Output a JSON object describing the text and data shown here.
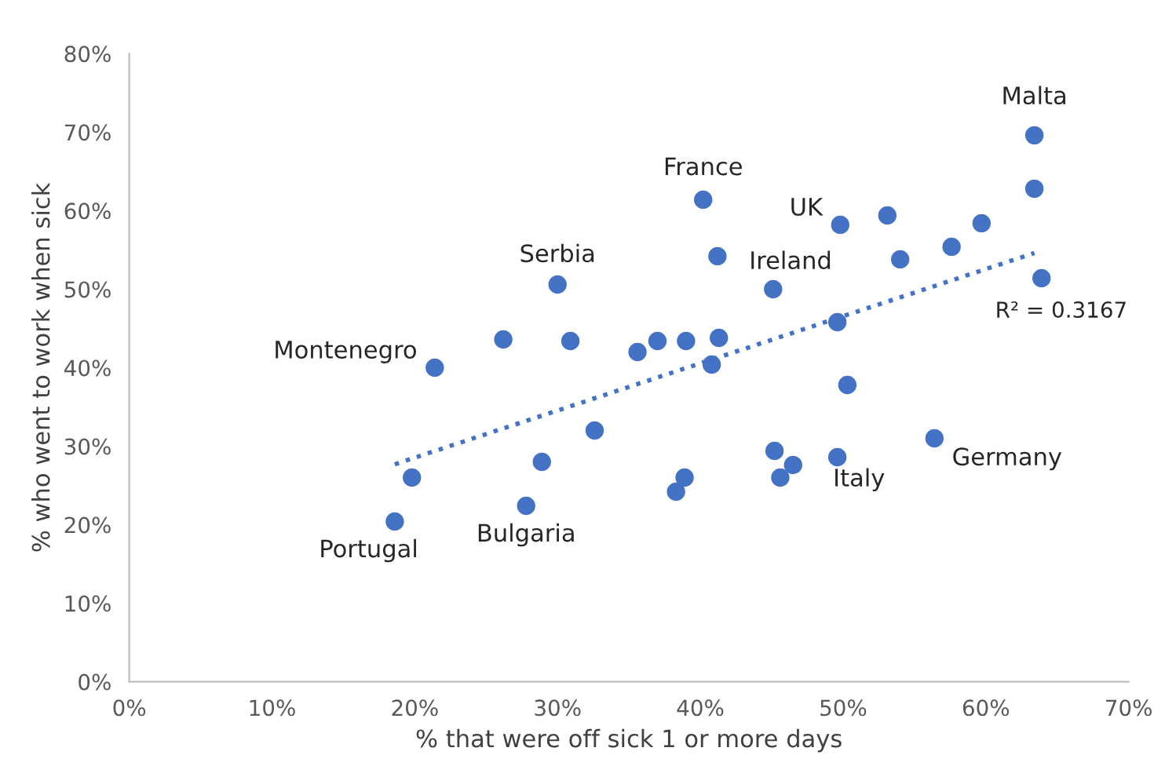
{
  "chart_data": {
    "type": "scatter",
    "xlabel": "% that were off sick 1 or more days",
    "ylabel": "% who went to work when sick",
    "xlim": [
      0,
      70
    ],
    "ylim": [
      0,
      80
    ],
    "xticks": [
      {
        "value": 0,
        "label": "0%"
      },
      {
        "value": 10,
        "label": "10%"
      },
      {
        "value": 20,
        "label": "20%"
      },
      {
        "value": 30,
        "label": "30%"
      },
      {
        "value": 40,
        "label": "40%"
      },
      {
        "value": 50,
        "label": "50%"
      },
      {
        "value": 60,
        "label": "60%"
      },
      {
        "value": 70,
        "label": "70%"
      }
    ],
    "yticks": [
      {
        "value": 0,
        "label": "0%"
      },
      {
        "value": 10,
        "label": "10%"
      },
      {
        "value": 20,
        "label": "20%"
      },
      {
        "value": 30,
        "label": "30%"
      },
      {
        "value": 40,
        "label": "40%"
      },
      {
        "value": 50,
        "label": "50%"
      },
      {
        "value": 60,
        "label": "60%"
      },
      {
        "value": 70,
        "label": "70%"
      },
      {
        "value": 80,
        "label": "80%"
      }
    ],
    "grid": false,
    "series": [
      {
        "color": "#4472c4",
        "marker": "circle",
        "x": [
          63.4,
          63.4,
          63.9,
          40.2,
          41.2,
          49.8,
          53.1,
          54.0,
          57.6,
          59.7,
          45.1,
          49.6,
          50.3,
          30.0,
          26.2,
          30.9,
          21.4,
          35.6,
          37.0,
          39.0,
          41.3,
          40.8,
          32.6,
          28.9,
          19.8,
          18.6,
          27.8,
          38.3,
          38.9,
          45.2,
          46.5,
          45.6,
          49.6,
          56.4
        ],
        "values": [
          69.6,
          62.8,
          51.4,
          61.4,
          54.2,
          58.2,
          59.4,
          53.8,
          55.4,
          58.4,
          50.0,
          45.8,
          37.8,
          50.6,
          43.6,
          43.4,
          40.0,
          42.0,
          43.4,
          43.4,
          43.8,
          40.4,
          32.0,
          28.0,
          26.0,
          20.4,
          22.4,
          24.2,
          26.0,
          29.4,
          27.6,
          26.0,
          28.6,
          31.0
        ]
      },
      {
        "type": "line",
        "color": "#4472c4",
        "line_style": "dotted",
        "marker": "none",
        "x": [
          18.6,
          63.4
        ],
        "values": [
          27.7,
          54.6
        ]
      }
    ],
    "annotations": [
      {
        "text": "Malta",
        "x": 63.4,
        "y": 69.6
      },
      {
        "text": "France",
        "x": 40.2,
        "y": 61.4
      },
      {
        "text": "UK",
        "x": 49.8,
        "y": 58.2
      },
      {
        "text": "Ireland",
        "x": 45.1,
        "y": 50.0
      },
      {
        "text": "Serbia",
        "x": 30.0,
        "y": 50.6
      },
      {
        "text": "Montenegro",
        "x": 21.4,
        "y": 40.0
      },
      {
        "text": "Portugal",
        "x": 18.6,
        "y": 20.4
      },
      {
        "text": "Bulgaria",
        "x": 27.8,
        "y": 22.4
      },
      {
        "text": "Italy",
        "x": 49.6,
        "y": 28.6
      },
      {
        "text": "Germany",
        "x": 56.4,
        "y": 31.0
      },
      {
        "text": "R² = 0.3167",
        "x": 63.4,
        "y": 54.6
      }
    ]
  }
}
